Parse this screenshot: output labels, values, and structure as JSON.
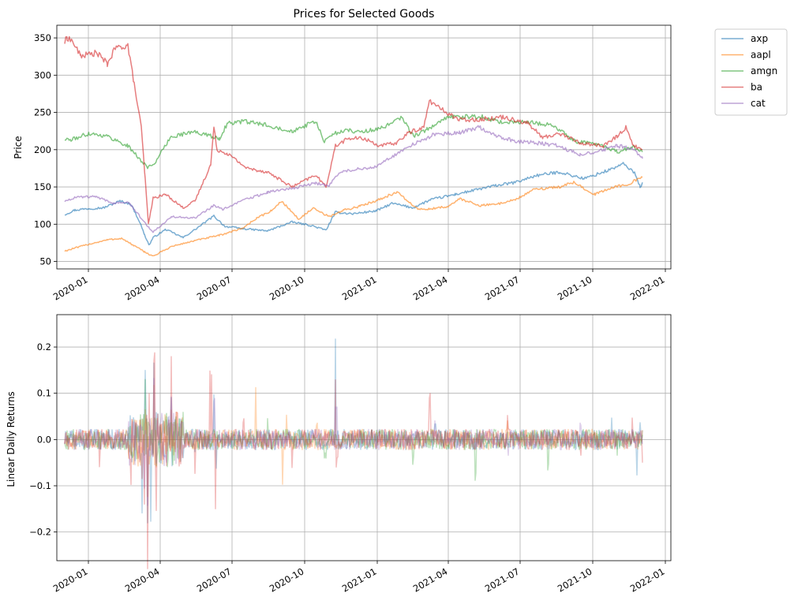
{
  "chart_data": [
    {
      "type": "line",
      "title": "Prices for Selected Goods",
      "xlabel": "",
      "ylabel": "Price",
      "ylim": [
        40,
        367
      ],
      "xlim": [
        "2019-11-22",
        "2022-01-08"
      ],
      "x_ticks": [
        "2020-01",
        "2020-04",
        "2020-07",
        "2020-10",
        "2021-01",
        "2021-04",
        "2021-07",
        "2021-10",
        "2022-01"
      ],
      "y_ticks": [
        50,
        100,
        150,
        200,
        250,
        300,
        350
      ],
      "grid": true,
      "legend_position": "outside-top-right",
      "series": [
        {
          "name": "axp",
          "color": "#1f77b4",
          "x": [
            "2019-12-02",
            "2019-12-15",
            "2020-01-01",
            "2020-01-20",
            "2020-02-10",
            "2020-02-24",
            "2020-03-06",
            "2020-03-12",
            "2020-03-18",
            "2020-03-23",
            "2020-04-08",
            "2020-04-30",
            "2020-05-14",
            "2020-06-08",
            "2020-06-22",
            "2020-07-15",
            "2020-08-15",
            "2020-09-15",
            "2020-10-10",
            "2020-10-28",
            "2020-11-09",
            "2020-12-01",
            "2020-12-31",
            "2021-01-20",
            "2021-02-15",
            "2021-03-10",
            "2021-04-10",
            "2021-05-10",
            "2021-06-01",
            "2021-06-25",
            "2021-07-20",
            "2021-08-20",
            "2021-09-20",
            "2021-10-20",
            "2021-11-09",
            "2021-11-24",
            "2021-11-30",
            "2021-12-03"
          ],
          "values": [
            113,
            119,
            121,
            122,
            131,
            127,
            103,
            86,
            72,
            82,
            93,
            82,
            92,
            111,
            97,
            94,
            91,
            103,
            98,
            92,
            116,
            114,
            118,
            128,
            122,
            133,
            140,
            147,
            152,
            156,
            165,
            170,
            161,
            172,
            181,
            168,
            150,
            155
          ]
        },
        {
          "name": "aapl",
          "color": "#ff7f0e",
          "x": [
            "2019-12-02",
            "2020-01-01",
            "2020-01-25",
            "2020-02-12",
            "2020-02-28",
            "2020-03-12",
            "2020-03-23",
            "2020-04-15",
            "2020-05-15",
            "2020-06-15",
            "2020-07-15",
            "2020-08-01",
            "2020-08-20",
            "2020-09-02",
            "2020-09-23",
            "2020-10-12",
            "2020-11-01",
            "2020-11-20",
            "2020-12-10",
            "2020-12-31",
            "2021-01-26",
            "2021-02-20",
            "2021-03-08",
            "2021-04-01",
            "2021-04-16",
            "2021-05-12",
            "2021-06-01",
            "2021-06-25",
            "2021-07-20",
            "2021-08-20",
            "2021-09-07",
            "2021-10-04",
            "2021-10-25",
            "2021-11-15",
            "2021-12-03"
          ],
          "values": [
            64,
            73,
            79,
            81,
            71,
            63,
            57,
            70,
            78,
            85,
            95,
            108,
            118,
            131,
            107,
            121,
            110,
            119,
            124,
            132,
            143,
            121,
            120,
            124,
            134,
            125,
            127,
            133,
            147,
            150,
            156,
            140,
            149,
            154,
            163
          ]
        },
        {
          "name": "amgn",
          "color": "#2ca02c",
          "x": [
            "2019-12-02",
            "2019-12-10",
            "2020-01-02",
            "2020-01-25",
            "2020-02-20",
            "2020-03-16",
            "2020-03-25",
            "2020-04-15",
            "2020-05-15",
            "2020-06-15",
            "2020-06-25",
            "2020-07-15",
            "2020-08-15",
            "2020-09-15",
            "2020-10-15",
            "2020-10-26",
            "2020-11-05",
            "2020-11-23",
            "2020-12-15",
            "2021-01-10",
            "2021-02-01",
            "2021-02-16",
            "2021-03-05",
            "2021-04-01",
            "2021-04-23",
            "2021-05-15",
            "2021-06-10",
            "2021-07-01",
            "2021-07-20",
            "2021-08-10",
            "2021-09-10",
            "2021-10-10",
            "2021-11-01",
            "2021-11-20",
            "2021-12-03"
          ],
          "values": [
            214,
            213,
            222,
            218,
            205,
            176,
            182,
            218,
            224,
            215,
            235,
            238,
            233,
            225,
            238,
            210,
            221,
            226,
            224,
            230,
            243,
            218,
            227,
            244,
            244,
            244,
            236,
            237,
            236,
            233,
            211,
            207,
            197,
            204,
            198
          ]
        },
        {
          "name": "ba",
          "color": "#d62728",
          "x": [
            "2019-12-02",
            "2019-12-05",
            "2019-12-12",
            "2019-12-22",
            "2020-01-12",
            "2020-01-25",
            "2020-02-04",
            "2020-02-20",
            "2020-02-28",
            "2020-03-08",
            "2020-03-13",
            "2020-03-17",
            "2020-03-23",
            "2020-04-08",
            "2020-04-30",
            "2020-05-15",
            "2020-06-04",
            "2020-06-08",
            "2020-06-12",
            "2020-06-25",
            "2020-07-20",
            "2020-08-15",
            "2020-09-15",
            "2020-10-15",
            "2020-10-28",
            "2020-11-09",
            "2020-11-25",
            "2020-12-15",
            "2021-01-05",
            "2021-01-25",
            "2021-02-10",
            "2021-03-01",
            "2021-03-08",
            "2021-03-22",
            "2021-04-15",
            "2021-05-15",
            "2021-06-10",
            "2021-07-10",
            "2021-07-30",
            "2021-08-20",
            "2021-09-15",
            "2021-10-15",
            "2021-11-01",
            "2021-11-12",
            "2021-11-22",
            "2021-12-03"
          ],
          "values": [
            344,
            351,
            345,
            326,
            330,
            315,
            336,
            340,
            288,
            230,
            160,
            100,
            135,
            140,
            122,
            131,
            180,
            230,
            200,
            195,
            175,
            170,
            150,
            166,
            150,
            205,
            215,
            215,
            205,
            209,
            223,
            230,
            266,
            255,
            240,
            241,
            244,
            236,
            216,
            222,
            209,
            205,
            218,
            230,
            205,
            200
          ]
        },
        {
          "name": "cat",
          "color": "#9467bd",
          "x": [
            "2019-12-02",
            "2019-12-15",
            "2020-01-10",
            "2020-02-01",
            "2020-02-20",
            "2020-03-05",
            "2020-03-18",
            "2020-03-23",
            "2020-04-15",
            "2020-05-15",
            "2020-06-08",
            "2020-06-20",
            "2020-07-15",
            "2020-08-15",
            "2020-09-15",
            "2020-10-15",
            "2020-11-01",
            "2020-11-15",
            "2020-12-15",
            "2021-01-01",
            "2021-01-25",
            "2021-02-15",
            "2021-03-15",
            "2021-04-15",
            "2021-05-10",
            "2021-06-01",
            "2021-06-25",
            "2021-07-15",
            "2021-08-15",
            "2021-09-15",
            "2021-10-15",
            "2021-11-01",
            "2021-11-20",
            "2021-12-03"
          ],
          "values": [
            131,
            136,
            137,
            128,
            131,
            112,
            95,
            90,
            110,
            108,
            125,
            120,
            132,
            143,
            148,
            155,
            152,
            170,
            175,
            178,
            194,
            207,
            221,
            223,
            230,
            219,
            211,
            210,
            206,
            193,
            200,
            205,
            202,
            188
          ]
        }
      ]
    },
    {
      "type": "line",
      "title": "",
      "xlabel": "",
      "ylabel": "Linear Daily Returns",
      "ylim": [
        -0.262,
        0.27
      ],
      "xlim": [
        "2019-11-22",
        "2022-01-08"
      ],
      "x_ticks": [
        "2020-01",
        "2020-04",
        "2020-07",
        "2020-10",
        "2021-01",
        "2021-04",
        "2021-07",
        "2021-10",
        "2022-01"
      ],
      "y_ticks": [
        -0.2,
        -0.1,
        0.0,
        0.1,
        0.2
      ],
      "y_tick_labels": [
        "−0.2",
        "−0.1",
        "0.0",
        "0.1",
        "0.2"
      ],
      "grid": true,
      "description_values": "daily linear returns of axp, aapl, amgn, ba, cat",
      "series": [
        {
          "name": "axp",
          "color": "#1f77b4",
          "x": [
            "2019-12-02",
            "2020-01-15",
            "2020-02-24",
            "2020-03-09",
            "2020-03-13",
            "2020-03-16",
            "2020-03-20",
            "2020-03-24",
            "2020-03-31",
            "2020-04-15",
            "2020-05-15",
            "2020-06-08",
            "2020-06-11",
            "2020-07-15",
            "2020-09-15",
            "2020-11-09",
            "2020-11-10",
            "2021-01-15",
            "2021-03-15",
            "2021-06-15",
            "2021-09-15",
            "2021-10-25",
            "2021-11-26",
            "2021-11-30",
            "2021-12-03"
          ],
          "values": [
            0.0,
            0.01,
            -0.04,
            -0.1,
            0.19,
            -0.15,
            -0.12,
            0.22,
            -0.05,
            0.06,
            -0.02,
            0.1,
            -0.07,
            0.02,
            -0.01,
            0.215,
            -0.02,
            0.01,
            0.02,
            0.01,
            -0.01,
            0.05,
            -0.085,
            0.04,
            0.02
          ]
        },
        {
          "name": "aapl",
          "color": "#ff7f0e",
          "x": [
            "2019-12-02",
            "2020-01-15",
            "2020-02-24",
            "2020-03-09",
            "2020-03-13",
            "2020-03-16",
            "2020-03-24",
            "2020-04-15",
            "2020-07-31",
            "2020-09-03",
            "2020-09-08",
            "2020-10-15",
            "2021-01-28",
            "2021-03-15",
            "2021-06-15",
            "2021-09-15",
            "2021-12-03"
          ],
          "values": [
            0.0,
            0.01,
            -0.05,
            -0.08,
            0.12,
            -0.13,
            0.09,
            0.03,
            0.1,
            -0.08,
            0.06,
            0.02,
            -0.04,
            0.03,
            0.02,
            -0.02,
            0.02
          ]
        },
        {
          "name": "amgn",
          "color": "#2ca02c",
          "x": [
            "2019-12-02",
            "2020-02-24",
            "2020-03-13",
            "2020-03-16",
            "2020-03-24",
            "2020-05-15",
            "2020-08-15",
            "2020-10-26",
            "2021-02-15",
            "2021-05-05",
            "2021-08-05",
            "2021-11-01",
            "2021-12-03"
          ],
          "values": [
            0.0,
            -0.02,
            0.08,
            -0.06,
            0.04,
            0.02,
            0.03,
            -0.05,
            -0.05,
            -0.075,
            -0.065,
            -0.03,
            0.01
          ]
        },
        {
          "name": "ba",
          "color": "#d62728",
          "x": [
            "2019-12-02",
            "2020-01-15",
            "2020-02-24",
            "2020-03-09",
            "2020-03-12",
            "2020-03-16",
            "2020-03-18",
            "2020-03-24",
            "2020-03-25",
            "2020-03-27",
            "2020-04-15",
            "2020-05-15",
            "2020-06-03",
            "2020-06-05",
            "2020-06-10",
            "2020-07-15",
            "2020-09-15",
            "2020-11-09",
            "2020-11-10",
            "2021-03-08",
            "2021-06-15",
            "2021-09-15",
            "2021-11-20",
            "2021-12-03"
          ],
          "values": [
            0.0,
            -0.04,
            -0.05,
            -0.12,
            -0.18,
            -0.24,
            0.1,
            0.22,
            0.24,
            -0.1,
            0.14,
            -0.07,
            0.13,
            0.12,
            -0.165,
            0.05,
            -0.04,
            0.135,
            -0.05,
            0.08,
            0.04,
            -0.03,
            0.06,
            -0.05
          ]
        },
        {
          "name": "cat",
          "color": "#9467bd",
          "x": [
            "2019-12-02",
            "2020-02-24",
            "2020-03-12",
            "2020-03-16",
            "2020-03-24",
            "2020-04-15",
            "2020-06-08",
            "2020-08-15",
            "2020-11-09",
            "2021-03-15",
            "2021-06-15",
            "2021-09-15",
            "2021-12-03"
          ],
          "values": [
            0.0,
            -0.03,
            -0.1,
            -0.14,
            0.1,
            0.05,
            0.08,
            0.03,
            0.05,
            0.02,
            -0.02,
            0.02,
            -0.01
          ]
        }
      ]
    }
  ]
}
